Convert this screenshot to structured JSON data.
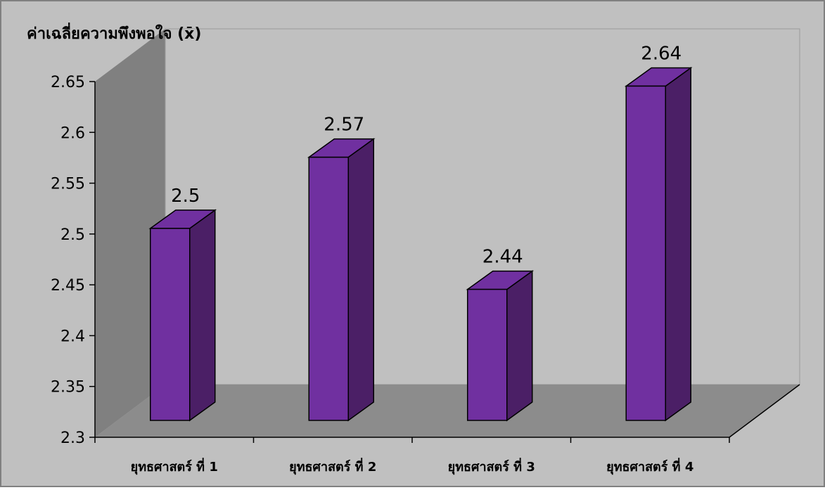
{
  "chart_data": {
    "type": "bar",
    "ylabel": "ค่าเฉลี่ยความพึงพอใจ  (x̄)",
    "categories": [
      "ยุทธศาสตร์ ที่ 1",
      "ยุทธศาสตร์ ที่ 2",
      "ยุทธศาสตร์ ที่ 3",
      "ยุทธศาสตร์ ที่ 4"
    ],
    "values": [
      2.5,
      2.57,
      2.44,
      2.64
    ],
    "value_labels": [
      "2.5",
      "2.57",
      "2.44",
      "2.64"
    ],
    "ylim": [
      2.3,
      2.65
    ],
    "yticks": [
      "2.3",
      "2.35",
      "2.4",
      "2.45",
      "2.5",
      "2.55",
      "2.6",
      "2.65"
    ],
    "style": "3d-column",
    "grid": false,
    "colors": {
      "bar_front": "#7030A0",
      "bar_side": "#4B1F66",
      "bar_top": "#7030A0",
      "wall": "#C0C0C0",
      "side_wall": "#808080",
      "floor": "#8C8C8C",
      "border": "#808080"
    }
  }
}
